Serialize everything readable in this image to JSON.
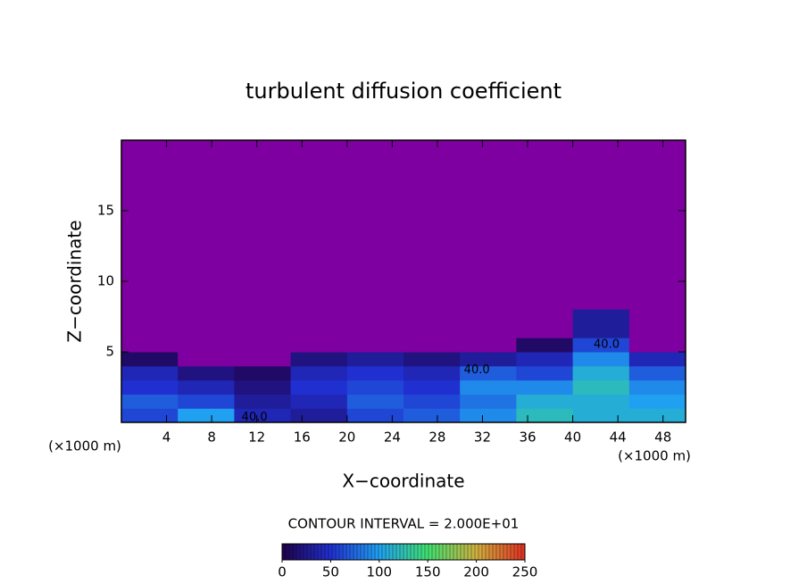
{
  "chart_data": {
    "type": "contour",
    "title": "turbulent diffusion coefficient",
    "xlabel": "X−coordinate",
    "ylabel": "Z−coordinate",
    "xunit": "(×1000 m)",
    "yunit": "(×1000 m)",
    "xlim": [
      0,
      50
    ],
    "ylim": [
      0,
      20
    ],
    "xticks": [
      4,
      8,
      12,
      16,
      20,
      24,
      28,
      32,
      36,
      40,
      44,
      48
    ],
    "yticks": [
      5,
      10,
      15
    ],
    "field": {
      "x_edges": [
        0,
        5,
        10,
        15,
        20,
        25,
        30,
        35,
        40,
        45,
        50
      ],
      "z_edges": [
        0,
        1,
        2,
        3,
        4,
        5,
        6,
        8
      ],
      "values": [
        [
          60,
          100,
          40,
          30,
          60,
          70,
          90,
          120,
          110,
          110
        ],
        [
          70,
          60,
          30,
          40,
          70,
          60,
          80,
          110,
          110,
          100
        ],
        [
          50,
          40,
          20,
          50,
          60,
          50,
          90,
          90,
          120,
          90
        ],
        [
          40,
          20,
          10,
          40,
          50,
          40,
          70,
          60,
          110,
          70
        ],
        [
          10,
          0,
          0,
          20,
          30,
          20,
          30,
          40,
          90,
          40
        ],
        [
          0,
          0,
          0,
          0,
          0,
          0,
          0,
          10,
          60,
          0
        ],
        [
          0,
          0,
          0,
          0,
          0,
          0,
          0,
          0,
          30,
          0
        ]
      ]
    },
    "background_color": "#7f00a0",
    "colors": [
      "#20004a",
      "#2030d0",
      "#20a0f0",
      "#40e070",
      "#d0b040",
      "#e03020"
    ],
    "clim": [
      0,
      250
    ],
    "colorbar_ticks": [
      0,
      50,
      100,
      150,
      200,
      250
    ],
    "contour_interval": "CONTOUR INTERVAL = 2.000E+01",
    "annotations": [
      {
        "text": "40.0",
        "x": 43,
        "z": 5.5
      },
      {
        "text": "40.0",
        "x": 31.5,
        "z": 3.7
      },
      {
        "text": "40.0",
        "x": 11.8,
        "z": 0.35
      }
    ]
  }
}
